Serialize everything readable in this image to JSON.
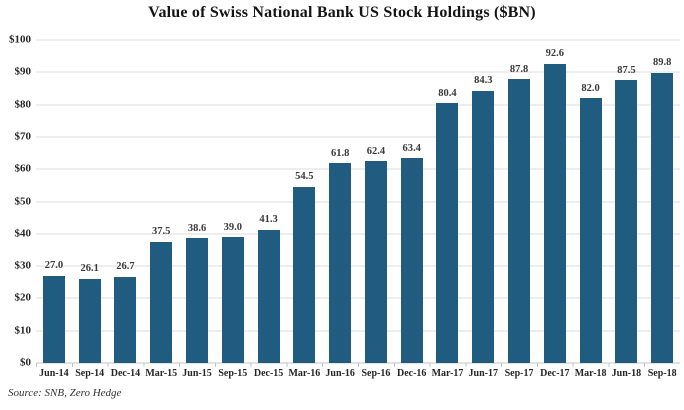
{
  "chart_data": {
    "type": "bar",
    "title": "Value of Swiss National Bank US Stock Holdings ($BN)",
    "categories": [
      "Jun-14",
      "Sep-14",
      "Dec-14",
      "Mar-15",
      "Jun-15",
      "Sep-15",
      "Dec-15",
      "Mar-16",
      "Jun-16",
      "Sep-16",
      "Dec-16",
      "Mar-17",
      "Jun-17",
      "Sep-17",
      "Dec-17",
      "Mar-18",
      "Jun-18",
      "Sep-18"
    ],
    "values": [
      27.0,
      26.1,
      26.7,
      37.5,
      38.6,
      39.0,
      41.3,
      54.5,
      61.8,
      62.4,
      63.4,
      80.4,
      84.3,
      87.8,
      92.6,
      82.0,
      87.5,
      89.8
    ],
    "value_label_decimals": 1,
    "xlabel": "",
    "ylabel": "",
    "ylim": [
      0,
      100
    ],
    "y_ticks": [
      {
        "label": "$0",
        "value": 0
      },
      {
        "label": "$10",
        "value": 10
      },
      {
        "label": "$20",
        "value": 20
      },
      {
        "label": "$30",
        "value": 30
      },
      {
        "label": "$40",
        "value": 40
      },
      {
        "label": "$50",
        "value": 50
      },
      {
        "label": "$60",
        "value": 60
      },
      {
        "label": "$70",
        "value": 70
      },
      {
        "label": "$80",
        "value": 80
      },
      {
        "label": "$90",
        "value": 90
      },
      {
        "label": "$100",
        "value": 100
      }
    ],
    "grid": true,
    "legend_position": "none",
    "bar_color": "#1F5C7F",
    "gridline_color": "#DCDCDC",
    "source": "Source: SNB, Zero Hedge"
  }
}
